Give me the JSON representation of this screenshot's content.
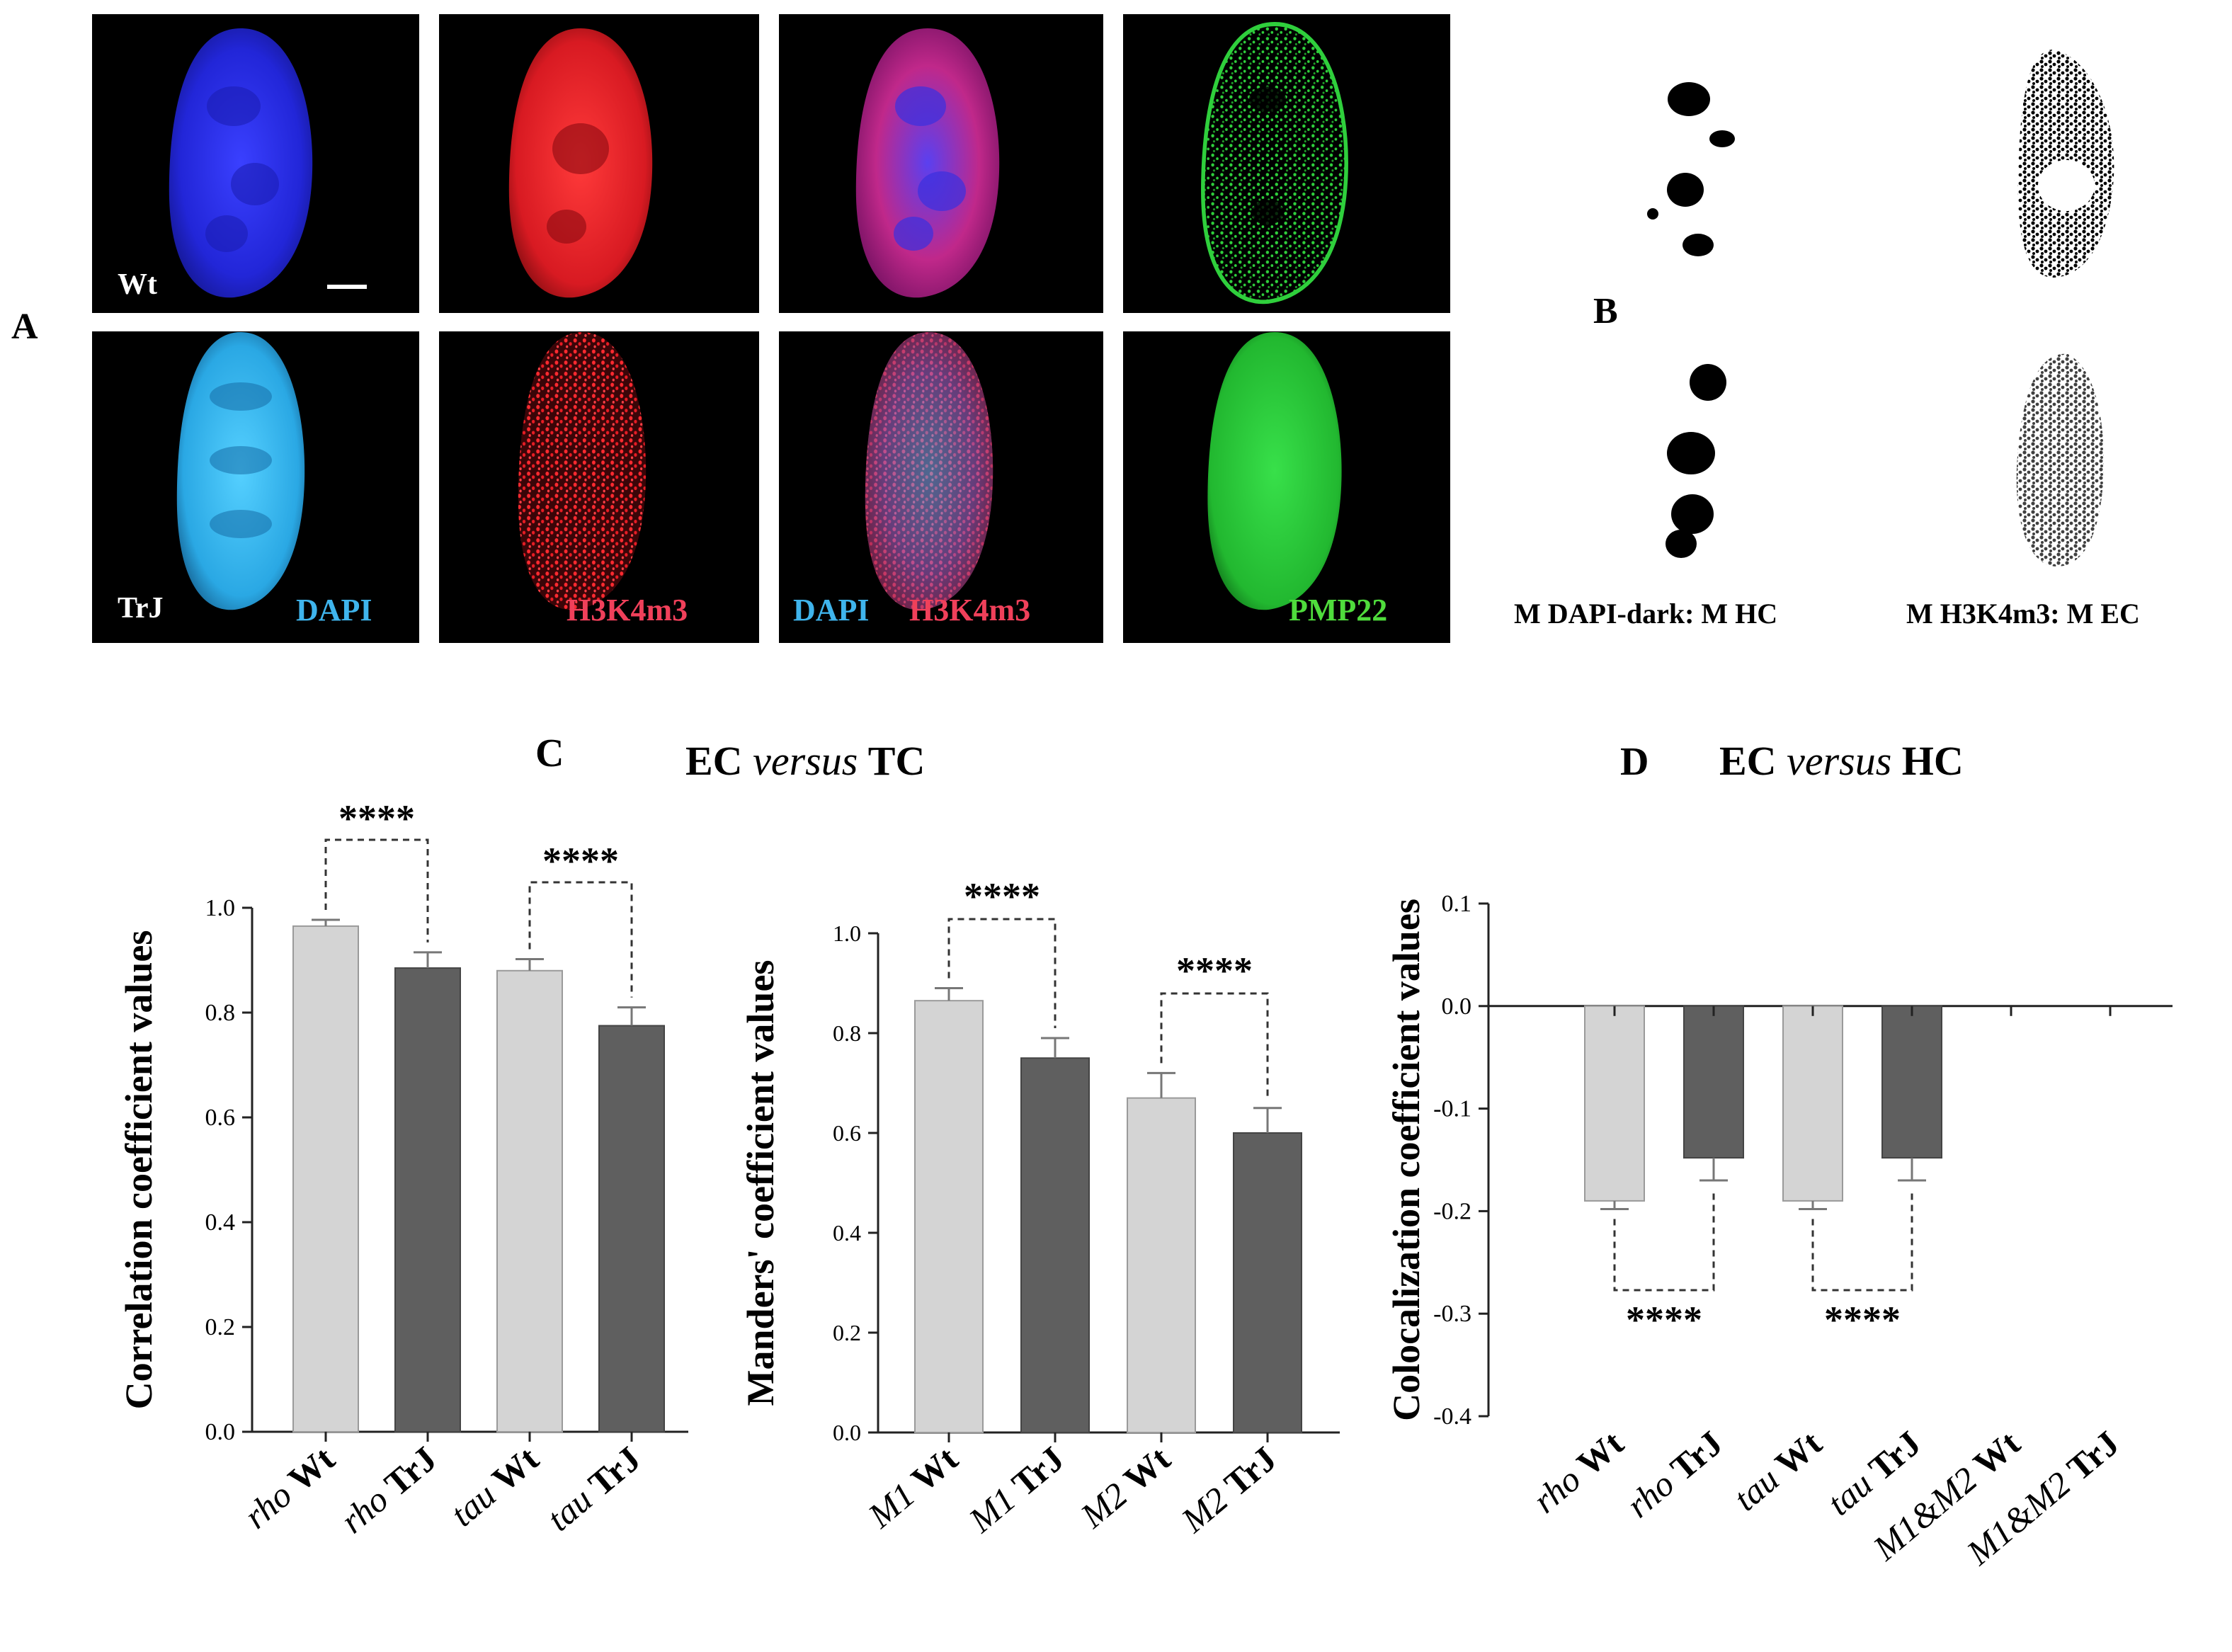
{
  "colors": {
    "background": "#ffffff",
    "panel_bg": "#000000",
    "dapi_wt": "#2a2ef0",
    "dapi_trj": "#2fb8f0",
    "h3k4m3": "#f21c2c",
    "pmp22": "#22c23a",
    "bar_wt": "#d4d4d4",
    "bar_trj": "#5f5f5f",
    "label_white": "#ffffff",
    "label_dapi": "#3fb4ec",
    "label_h3k4m3": "#f0405a",
    "label_pmp22": "#4fdc3c"
  },
  "panel_a": {
    "letter": "A",
    "wt_label": "Wt",
    "trj_label": "TrJ",
    "channels": {
      "dapi": "DAPI",
      "h3k4m3": "H3K4m3",
      "merge_dapi": "DAPI",
      "merge_h3k4m3": "H3K4m3",
      "pmp22": "PMP22"
    }
  },
  "panel_b": {
    "letter": "B",
    "captions": [
      "M DAPI-dark: M HC",
      "M H3K4m3: M EC"
    ]
  },
  "panel_c": {
    "letter": "C",
    "title": {
      "a": "EC",
      "b": "versus",
      "c": "TC"
    }
  },
  "panel_d": {
    "letter": "D",
    "title": {
      "a": "EC",
      "b": "versus",
      "c": "HC"
    }
  },
  "chart_data": [
    {
      "id": "correlation",
      "type": "bar",
      "ylabel": "Correlation coefficient values",
      "ylim": [
        0.0,
        1.0
      ],
      "yticks": [
        0.0,
        0.2,
        0.4,
        0.6,
        0.8,
        1.0
      ],
      "ytick_labels": [
        "0.0",
        "0.2",
        "0.4",
        "0.6",
        "0.8",
        "1.0"
      ],
      "categories": [
        {
          "prefix": "rho",
          "name": "Wt"
        },
        {
          "prefix": "rho",
          "name": "TrJ"
        },
        {
          "prefix": "tau",
          "name": "Wt"
        },
        {
          "prefix": "tau",
          "name": "TrJ"
        }
      ],
      "values": [
        0.965,
        0.885,
        0.88,
        0.775
      ],
      "errors": [
        0.012,
        0.03,
        0.022,
        0.035
      ],
      "groups": [
        "Wt",
        "TrJ",
        "Wt",
        "TrJ"
      ],
      "significance": [
        {
          "from": 0,
          "to": 1,
          "label": "****"
        },
        {
          "from": 2,
          "to": 3,
          "label": "****"
        }
      ]
    },
    {
      "id": "manders",
      "type": "bar",
      "ylabel": "Manders' coefficient values",
      "ylim": [
        0.0,
        1.0
      ],
      "yticks": [
        0.0,
        0.2,
        0.4,
        0.6,
        0.8,
        1.0
      ],
      "ytick_labels": [
        "0.0",
        "0.2",
        "0.4",
        "0.6",
        "0.8",
        "1.0"
      ],
      "categories": [
        {
          "prefix": "M1",
          "name": "Wt"
        },
        {
          "prefix": "M1",
          "name": "TrJ"
        },
        {
          "prefix": "M2",
          "name": "Wt"
        },
        {
          "prefix": "M2",
          "name": "TrJ"
        }
      ],
      "values": [
        0.865,
        0.75,
        0.67,
        0.6
      ],
      "errors": [
        0.025,
        0.04,
        0.05,
        0.05
      ],
      "groups": [
        "Wt",
        "TrJ",
        "Wt",
        "TrJ"
      ],
      "significance": [
        {
          "from": 0,
          "to": 1,
          "label": "****"
        },
        {
          "from": 2,
          "to": 3,
          "label": "****"
        }
      ]
    },
    {
      "id": "colocalization",
      "type": "bar",
      "ylabel": "Colocalization coefficient values",
      "ylim": [
        -0.4,
        0.1
      ],
      "yticks": [
        -0.4,
        -0.3,
        -0.2,
        -0.1,
        0.0,
        0.1
      ],
      "ytick_labels": [
        "-0.4",
        "-0.3",
        "-0.2",
        "-0.1",
        "0.0",
        "0.1"
      ],
      "categories": [
        {
          "prefix": "rho",
          "name": "Wt"
        },
        {
          "prefix": "rho",
          "name": "TrJ"
        },
        {
          "prefix": "tau",
          "name": "Wt"
        },
        {
          "prefix": "tau",
          "name": "TrJ"
        },
        {
          "prefix": "M1&M2",
          "name": "Wt"
        },
        {
          "prefix": "M1&M2",
          "name": "TrJ"
        }
      ],
      "values": [
        -0.19,
        -0.148,
        -0.19,
        -0.148,
        0,
        0
      ],
      "errors": [
        0.008,
        0.022,
        0.008,
        0.022,
        0,
        0
      ],
      "groups": [
        "Wt",
        "TrJ",
        "Wt",
        "TrJ",
        "Wt",
        "TrJ"
      ],
      "significance": [
        {
          "from": 0,
          "to": 1,
          "label": "****"
        },
        {
          "from": 2,
          "to": 3,
          "label": "****"
        }
      ]
    }
  ]
}
